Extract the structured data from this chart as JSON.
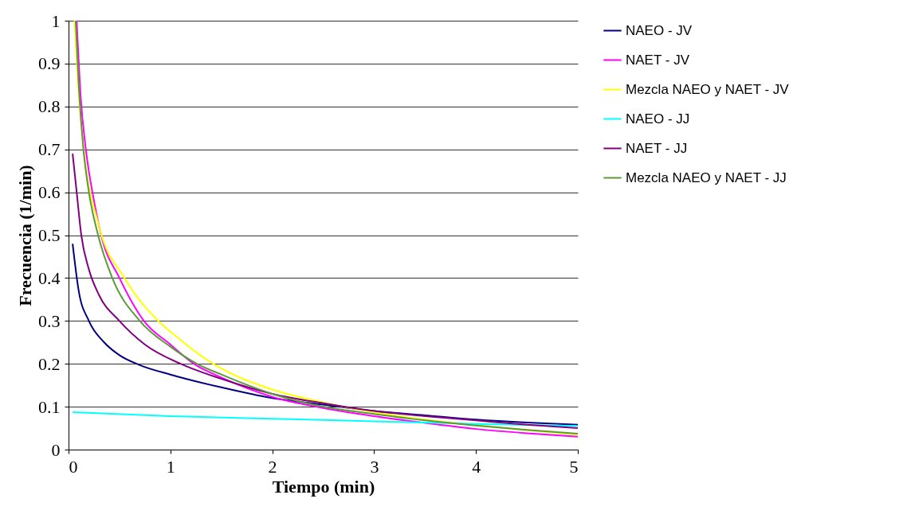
{
  "chart_data": {
    "type": "line",
    "xlabel": "Tiempo (min)",
    "ylabel": "Frecuencia (1/min)",
    "xlim": [
      0,
      5
    ],
    "xticks": [
      0,
      1,
      2,
      3,
      4,
      5
    ],
    "ylim": [
      0,
      1
    ],
    "yticks": [
      0,
      0.1,
      0.2,
      0.3,
      0.4,
      0.5,
      0.6,
      0.7,
      0.8,
      0.9,
      1
    ],
    "grid": "y",
    "legend": "right",
    "line_style": "solid",
    "marker": "none",
    "series": [
      {
        "name": "NAEO - JV",
        "color": "#000080",
        "x": [
          0.04,
          0.1,
          0.2,
          0.35,
          0.5,
          0.7,
          1,
          1.5,
          2,
          2.5,
          3,
          3.5,
          4,
          4.5,
          5
        ],
        "values": [
          0.48,
          0.37,
          0.3,
          0.25,
          0.22,
          0.197,
          0.175,
          0.145,
          0.12,
          0.105,
          0.09,
          0.08,
          0.07,
          0.063,
          0.058
        ]
      },
      {
        "name": "NAET - JV",
        "color": "#ff00ff",
        "x": [
          0.08,
          0.12,
          0.17,
          0.25,
          0.32,
          0.5,
          0.74,
          1,
          1.23,
          1.5,
          2,
          2.5,
          3,
          3.5,
          4,
          4.5,
          5
        ],
        "values": [
          1,
          0.82,
          0.7,
          0.58,
          0.5,
          0.4,
          0.3,
          0.245,
          0.2,
          0.168,
          0.123,
          0.097,
          0.078,
          0.062,
          0.048,
          0.038,
          0.03
        ]
      },
      {
        "name": "Mezcla NAEO y NAET - JV",
        "color": "#ffff00",
        "x": [
          0.06,
          0.1,
          0.15,
          0.3,
          0.55,
          0.88,
          1,
          1.42,
          2,
          2.5,
          3,
          3.5,
          4,
          4.5,
          5
        ],
        "values": [
          1,
          0.83,
          0.7,
          0.52,
          0.4,
          0.3,
          0.275,
          0.2,
          0.14,
          0.11,
          0.087,
          0.07,
          0.057,
          0.045,
          0.035
        ]
      },
      {
        "name": "NAEO - JJ",
        "color": "#00ffff",
        "x": [
          0.04,
          1,
          2,
          3,
          4,
          5
        ],
        "values": [
          0.087,
          0.078,
          0.072,
          0.066,
          0.06,
          0.055
        ]
      },
      {
        "name": "NAET - JJ",
        "color": "#800080",
        "x": [
          0.04,
          0.08,
          0.125,
          0.2,
          0.3,
          0.5,
          0.75,
          1.1,
          1.5,
          2,
          2.5,
          3,
          3.5,
          4,
          4.5,
          5
        ],
        "values": [
          0.69,
          0.6,
          0.5,
          0.42,
          0.36,
          0.3,
          0.245,
          0.2,
          0.165,
          0.13,
          0.108,
          0.09,
          0.078,
          0.068,
          0.058,
          0.05
        ]
      },
      {
        "name": "Mezcla NAEO y NAET - JJ",
        "color": "#5b9a3c",
        "x": [
          0.07,
          0.1,
          0.146,
          0.2,
          0.29,
          0.43,
          0.7,
          1,
          1.26,
          1.5,
          2,
          2.5,
          3,
          3.5,
          4,
          4.5,
          5
        ],
        "values": [
          1,
          0.85,
          0.7,
          0.6,
          0.5,
          0.4,
          0.3,
          0.24,
          0.2,
          0.175,
          0.13,
          0.1,
          0.083,
          0.068,
          0.056,
          0.046,
          0.037
        ]
      }
    ]
  }
}
